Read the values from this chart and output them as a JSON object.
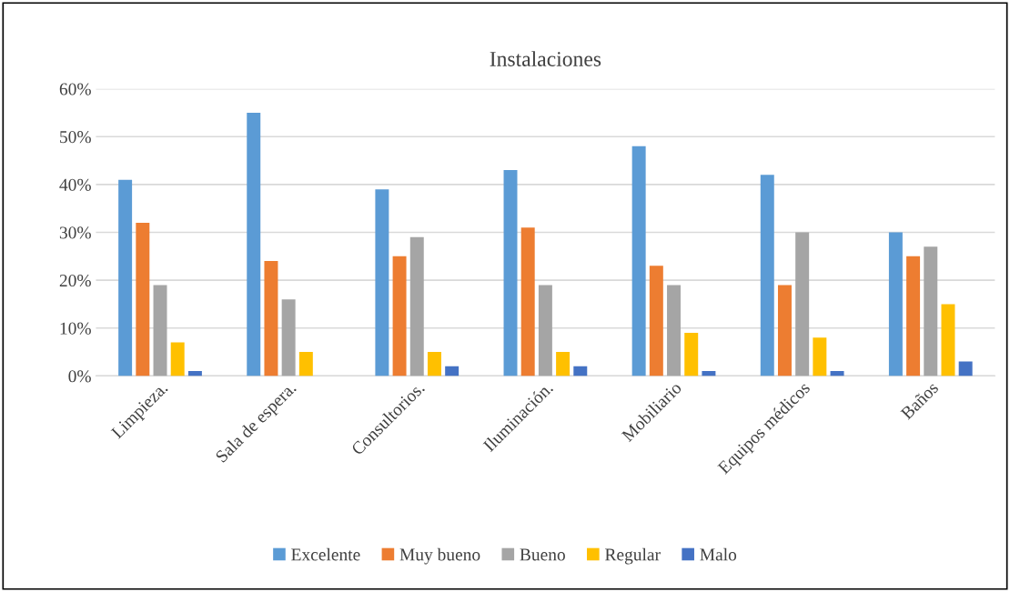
{
  "chart_data": {
    "type": "bar",
    "title": "Instalaciones",
    "categories": [
      "Limpieza.",
      "Sala de espera.",
      "Consultorios.",
      "Iluminación.",
      "Mobiliario",
      "Equipos médicos",
      "Baños"
    ],
    "series": [
      {
        "name": "Excelente",
        "color": "#5b9bd5",
        "values": [
          41,
          55,
          39,
          43,
          48,
          42,
          30
        ]
      },
      {
        "name": "Muy bueno",
        "color": "#ed7d31",
        "values": [
          32,
          24,
          25,
          31,
          23,
          19,
          25
        ]
      },
      {
        "name": "Bueno",
        "color": "#a5a5a5",
        "values": [
          19,
          16,
          29,
          19,
          19,
          30,
          27
        ]
      },
      {
        "name": "Regular",
        "color": "#ffc000",
        "values": [
          7,
          5,
          5,
          5,
          9,
          8,
          15
        ]
      },
      {
        "name": "Malo",
        "color": "#4472c4",
        "values": [
          1,
          0,
          2,
          2,
          1,
          1,
          3
        ]
      }
    ],
    "ylim": [
      0,
      60
    ],
    "yticks": [
      {
        "value": 0,
        "label": "0%"
      },
      {
        "value": 10,
        "label": "10%"
      },
      {
        "value": 20,
        "label": "20%"
      },
      {
        "value": 30,
        "label": "30%"
      },
      {
        "value": 40,
        "label": "40%"
      },
      {
        "value": 50,
        "label": "50%"
      },
      {
        "value": 60,
        "label": "60%"
      }
    ],
    "grid": "y",
    "legend": "bottom"
  }
}
